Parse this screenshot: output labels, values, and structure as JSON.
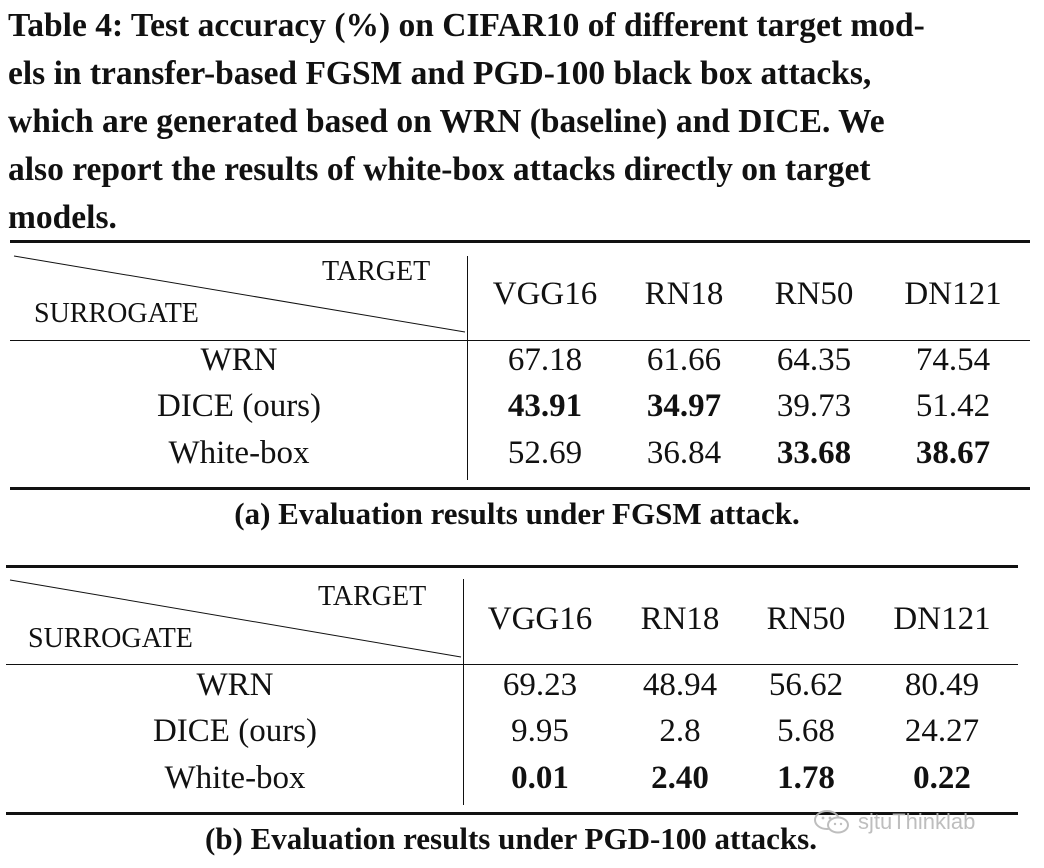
{
  "caption": {
    "lines": [
      "Table 4: Test accuracy (%) on CIFAR10 of different target mod-",
      "els in transfer-based FGSM and PGD-100 black box attacks,",
      "which are generated based on WRN (baseline) and DICE. We",
      "also report the results of white-box attacks directly on target",
      "models."
    ]
  },
  "tables": [
    {
      "corner_target": "TARGET",
      "corner_surrogate": "SURROGATE",
      "columns": [
        "VGG16",
        "RN18",
        "RN50",
        "DN121"
      ],
      "rows": [
        {
          "label": "WRN",
          "values": [
            "67.18",
            "61.66",
            "64.35",
            "74.54"
          ],
          "bold": [
            false,
            false,
            false,
            false
          ]
        },
        {
          "label": "DICE (ours)",
          "values": [
            "43.91",
            "34.97",
            "39.73",
            "51.42"
          ],
          "bold": [
            true,
            true,
            false,
            false
          ]
        },
        {
          "label": "White-box",
          "values": [
            "52.69",
            "36.84",
            "33.68",
            "38.67"
          ],
          "bold": [
            false,
            false,
            true,
            true
          ]
        }
      ],
      "subcaption": "(a) Evaluation results under FGSM attack."
    },
    {
      "corner_target": "TARGET",
      "corner_surrogate": "SURROGATE",
      "columns": [
        "VGG16",
        "RN18",
        "RN50",
        "DN121"
      ],
      "rows": [
        {
          "label": "WRN",
          "values": [
            "69.23",
            "48.94",
            "56.62",
            "80.49"
          ],
          "bold": [
            false,
            false,
            false,
            false
          ]
        },
        {
          "label": "DICE (ours)",
          "values": [
            "9.95",
            "2.8",
            "5.68",
            "24.27"
          ],
          "bold": [
            false,
            false,
            false,
            false
          ]
        },
        {
          "label": "White-box",
          "values": [
            "0.01",
            "2.40",
            "1.78",
            "0.22"
          ],
          "bold": [
            true,
            true,
            true,
            true
          ]
        }
      ],
      "subcaption": "(b) Evaluation results under PGD-100 attacks."
    }
  ],
  "watermark": {
    "text": "sjtuThinklab",
    "icon": "wechat-icon"
  }
}
